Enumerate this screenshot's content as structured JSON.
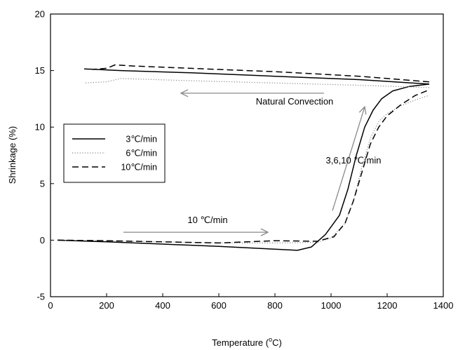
{
  "chart_data": {
    "type": "line",
    "xlabel": "Temperature (",
    "xlabel_sup": "o",
    "xlabel_unit": "C)",
    "ylabel": "Shrinkage (%)",
    "xlim": [
      0,
      1400
    ],
    "ylim": [
      -5,
      20
    ],
    "xticks": [
      "0",
      "200",
      "400",
      "600",
      "800",
      "1000",
      "1200",
      "1400"
    ],
    "yticks": [
      "-5",
      "0",
      "5",
      "10",
      "15",
      "20"
    ],
    "grid": false,
    "legend_position": "left",
    "series": [
      {
        "name": "3℃/min",
        "style": "solid",
        "color": "#000000",
        "heating": [
          [
            25,
            0
          ],
          [
            200,
            -0.15
          ],
          [
            400,
            -0.35
          ],
          [
            600,
            -0.55
          ],
          [
            800,
            -0.8
          ],
          [
            880,
            -0.9
          ],
          [
            930,
            -0.6
          ],
          [
            980,
            0.5
          ],
          [
            1030,
            2.2
          ],
          [
            1060,
            4.5
          ],
          [
            1090,
            7.5
          ],
          [
            1120,
            10.0
          ],
          [
            1150,
            11.5
          ],
          [
            1180,
            12.5
          ],
          [
            1220,
            13.2
          ],
          [
            1280,
            13.6
          ],
          [
            1350,
            13.8
          ]
        ],
        "cooling": [
          [
            1350,
            13.8
          ],
          [
            1100,
            14.2
          ],
          [
            800,
            14.5
          ],
          [
            500,
            14.8
          ],
          [
            250,
            15.0
          ],
          [
            120,
            15.15
          ]
        ]
      },
      {
        "name": "6℃/min",
        "style": "dotted",
        "color": "#888888",
        "heating": [
          [
            25,
            0
          ],
          [
            200,
            -0.05
          ],
          [
            400,
            -0.15
          ],
          [
            600,
            -0.25
          ],
          [
            800,
            -0.25
          ],
          [
            950,
            -0.2
          ],
          [
            1000,
            0.2
          ],
          [
            1050,
            1.5
          ],
          [
            1080,
            3.5
          ],
          [
            1110,
            6.5
          ],
          [
            1140,
            9.0
          ],
          [
            1170,
            10.5
          ],
          [
            1200,
            11.2
          ],
          [
            1250,
            11.9
          ],
          [
            1300,
            12.4
          ],
          [
            1350,
            12.8
          ]
        ],
        "cooling": [
          [
            1350,
            13.5
          ],
          [
            1100,
            13.7
          ],
          [
            800,
            13.9
          ],
          [
            500,
            14.1
          ],
          [
            250,
            14.3
          ],
          [
            200,
            14.0
          ],
          [
            120,
            13.9
          ]
        ]
      },
      {
        "name": "10℃/min",
        "style": "dashed",
        "color": "#000000",
        "heating": [
          [
            25,
            0
          ],
          [
            200,
            -0.05
          ],
          [
            400,
            -0.15
          ],
          [
            600,
            -0.25
          ],
          [
            700,
            -0.15
          ],
          [
            800,
            -0.05
          ],
          [
            950,
            -0.1
          ],
          [
            1010,
            0.3
          ],
          [
            1050,
            1.5
          ],
          [
            1080,
            3.5
          ],
          [
            1110,
            6.0
          ],
          [
            1140,
            8.5
          ],
          [
            1170,
            10.0
          ],
          [
            1200,
            11.0
          ],
          [
            1250,
            12.0
          ],
          [
            1300,
            12.8
          ],
          [
            1350,
            13.3
          ]
        ],
        "cooling": [
          [
            1350,
            14.0
          ],
          [
            1100,
            14.5
          ],
          [
            800,
            14.9
          ],
          [
            500,
            15.2
          ],
          [
            300,
            15.4
          ],
          [
            230,
            15.5
          ],
          [
            200,
            15.2
          ],
          [
            150,
            15.1
          ]
        ]
      }
    ],
    "annotations": [
      {
        "text": "Natural Convection",
        "x": 870,
        "y": 12.0,
        "arrow_from": [
          975,
          13.0
        ],
        "arrow_to": [
          465,
          13.0
        ]
      },
      {
        "text": "3,6,10 ℃/min",
        "x": 1080,
        "y": 6.8,
        "arrow_from": [
          1005,
          2.6
        ],
        "arrow_to": [
          1120,
          11.8
        ]
      },
      {
        "text": "10 ℃/min",
        "x": 560,
        "y": 1.5,
        "arrow_from": [
          260,
          0.7
        ],
        "arrow_to": [
          775,
          0.7
        ]
      }
    ]
  }
}
